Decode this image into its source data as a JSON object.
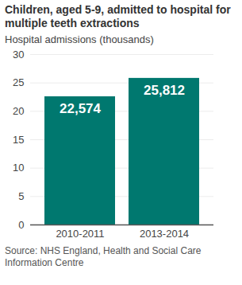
{
  "chart_data": {
    "type": "bar",
    "title": "Children, aged 5-9, admitted to hospital for multiple teeth extractions",
    "subtitle": "Hospital admissions (thousands)",
    "caption": "Source: NHS England, Health and Social Care Information Centre",
    "categories": [
      "2010-2011",
      "2013-2014"
    ],
    "values": [
      22.574,
      25.812
    ],
    "value_labels": [
      "22,574",
      "25,812"
    ],
    "data_labels": true,
    "color": "#00786f",
    "ylim": [
      0,
      30
    ],
    "yticks": [
      0,
      5,
      10,
      15,
      20,
      25,
      30
    ],
    "grid": true
  }
}
